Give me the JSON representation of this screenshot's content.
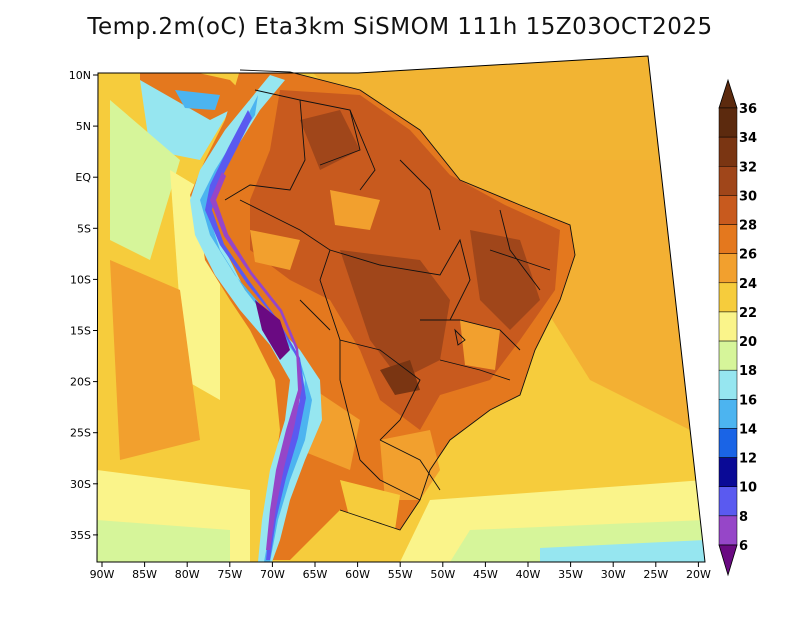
{
  "title": "Temp.2m(oC) Eta3km SiSMOM 111h 15Z03OCT2025",
  "map": {
    "lon_labels": [
      "90W",
      "85W",
      "80W",
      "75W",
      "70W",
      "65W",
      "60W",
      "55W",
      "50W",
      "45W",
      "40W",
      "35W",
      "30W",
      "25W",
      "20W"
    ],
    "lat_labels": [
      "10N",
      "5N",
      "EQ",
      "5S",
      "10S",
      "15S",
      "20S",
      "25S",
      "30S",
      "35S"
    ]
  },
  "colorbar": {
    "labels": [
      "36",
      "34",
      "32",
      "30",
      "28",
      "26",
      "24",
      "22",
      "20",
      "18",
      "16",
      "14",
      "12",
      "10",
      "8",
      "6"
    ],
    "colors": [
      "#5c2a0e",
      "#7a3512",
      "#a0461a",
      "#c85a1e",
      "#e4781e",
      "#f2a02e",
      "#f6cc3c",
      "#faf48a",
      "#d6f59a",
      "#96e6f0",
      "#4cb4f0",
      "#1a64e6",
      "#0a0a96",
      "#5a5af0",
      "#9646c8",
      "#6a0a82"
    ]
  }
}
